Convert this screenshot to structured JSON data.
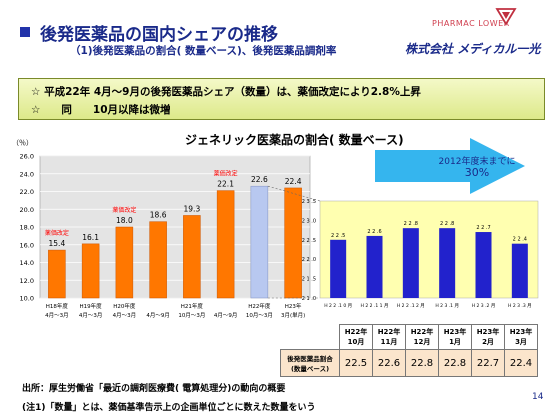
{
  "header": {
    "title": "後発医薬品の国内シェアの推移",
    "subtitle": "（1)後発医薬品の割合( 数量ベース)、後発医薬品調剤率",
    "logo_text": "PHARMAC LOWER",
    "company": "株式会社 メディカル一光"
  },
  "notice": {
    "line1": "☆ 平成22年 4月～9月の後発医薬品シェア（数量）は、薬価改定により2.8%上昇",
    "line2": "☆　　同　　10月以降は微増"
  },
  "target": {
    "label": "2012年度末までに",
    "value": "30%"
  },
  "colors": {
    "main_bar": "#ff7700",
    "highlight_bar": "#b8c8f0",
    "detail_bar": "#2222cc",
    "detail_bg": "#ffffb0",
    "arrow": "#3bb8f0",
    "price_revision": "#ff0000"
  },
  "chart_data": [
    {
      "type": "bar",
      "title": "ジェネリック医薬品の割合( 数量ベース)",
      "ylabel": "（％）",
      "ylim": [
        10.0,
        26.0
      ],
      "yticks": [
        "10.0",
        "12.0",
        "14.0",
        "16.0",
        "18.0",
        "20.0",
        "22.0",
        "24.0",
        "26.0"
      ],
      "categories": [
        [
          "H18年度",
          "4月～3月"
        ],
        [
          "H19年度",
          "4月～3月"
        ],
        [
          "H20年度",
          "4月～3月"
        ],
        [
          "",
          "4月～9月"
        ],
        [
          "H21年度",
          "10月～3月"
        ],
        [
          "",
          "4月～9月"
        ],
        [
          "H22年度",
          "10月～3月"
        ],
        [
          "H23年",
          "3月(単月)"
        ]
      ],
      "values": [
        15.4,
        16.1,
        18.0,
        18.6,
        19.3,
        22.1,
        22.6,
        22.4
      ],
      "value_labels": [
        "15.4",
        "16.1",
        "18.0",
        "18.6",
        "19.3",
        "22.1",
        "22.6",
        "22.4"
      ],
      "highlight_index": 6,
      "annotations": [
        {
          "index": 0,
          "text": "薬価改定"
        },
        {
          "index": 2,
          "text": "薬価改定"
        },
        {
          "index": 5,
          "text": "薬価改定"
        }
      ],
      "grid": true
    },
    {
      "type": "bar",
      "categories": [
        "H 2 2 .1 0 月",
        "H 2 2 .1 1 月",
        "H 2 2 .1 2 月",
        "H 2 3 .1 月",
        "H 2 3 .2 月",
        "H 2 3 .3 月"
      ],
      "values": [
        22.5,
        22.6,
        22.8,
        22.8,
        22.7,
        22.4
      ],
      "value_labels": [
        "2 2 .5",
        "2 2 .6",
        "2 2 .8",
        "2 2 .8",
        "2 2 .7",
        "2 2 .4"
      ],
      "ylim": [
        21.0,
        23.5
      ],
      "yticks": [
        "2 1 .0",
        "2 1 .5",
        "2 2 .0",
        "2 2 .5",
        "2 3 .0",
        "2 3 .5"
      ],
      "grid": false
    }
  ],
  "table": {
    "headers": [
      {
        "year": "H22年",
        "month": "10月"
      },
      {
        "year": "H22年",
        "month": "11月"
      },
      {
        "year": "H22年",
        "month": "12月"
      },
      {
        "year": "H23年",
        "month": "1月"
      },
      {
        "year": "H23年",
        "month": "2月"
      },
      {
        "year": "H23年",
        "month": "3月"
      }
    ],
    "row_label_1": "後発医薬品割合",
    "row_label_2": "(数量ベース)",
    "values": [
      "22.5",
      "22.6",
      "22.8",
      "22.8",
      "22.7",
      "22.4"
    ]
  },
  "footer": {
    "source": "出所：厚生労働省「最近の調剤医療費( 電算処理分)の動向の概要",
    "note": "(注1)「数量」とは、薬価基準告示上の企画単位ごとに数えた数量をいう",
    "page": "14"
  }
}
